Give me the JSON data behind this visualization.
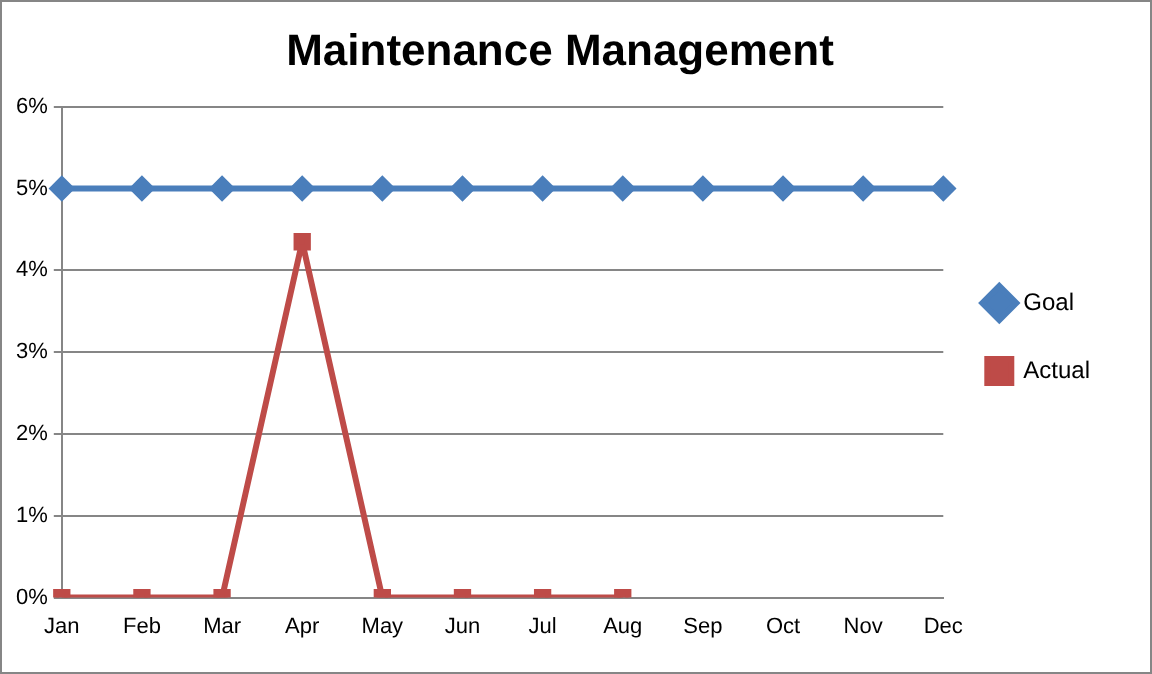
{
  "chart_data": {
    "type": "line",
    "title": "Maintenance Management",
    "categories": [
      "Jan",
      "Feb",
      "Mar",
      "Apr",
      "May",
      "Jun",
      "Jul",
      "Aug",
      "Sep",
      "Oct",
      "Nov",
      "Dec"
    ],
    "series": [
      {
        "name": "Goal",
        "color": "#4a7ebb",
        "marker": "diamond",
        "values": [
          5,
          5,
          5,
          5,
          5,
          5,
          5,
          5,
          5,
          5,
          5,
          5
        ]
      },
      {
        "name": "Actual",
        "color": "#be4b48",
        "marker": "square",
        "values": [
          0,
          0,
          0,
          4.35,
          0,
          0,
          0,
          0,
          null,
          null,
          null,
          null
        ]
      }
    ],
    "ylim": [
      0,
      6
    ],
    "yticks": [
      {
        "value": 0,
        "label": "0%"
      },
      {
        "value": 1,
        "label": "1%"
      },
      {
        "value": 2,
        "label": "2%"
      },
      {
        "value": 3,
        "label": "3%"
      },
      {
        "value": 4,
        "label": "4%"
      },
      {
        "value": 5,
        "label": "5%"
      },
      {
        "value": 6,
        "label": "6%"
      }
    ],
    "grid": "y",
    "legend": "right",
    "line_style": "solid"
  }
}
